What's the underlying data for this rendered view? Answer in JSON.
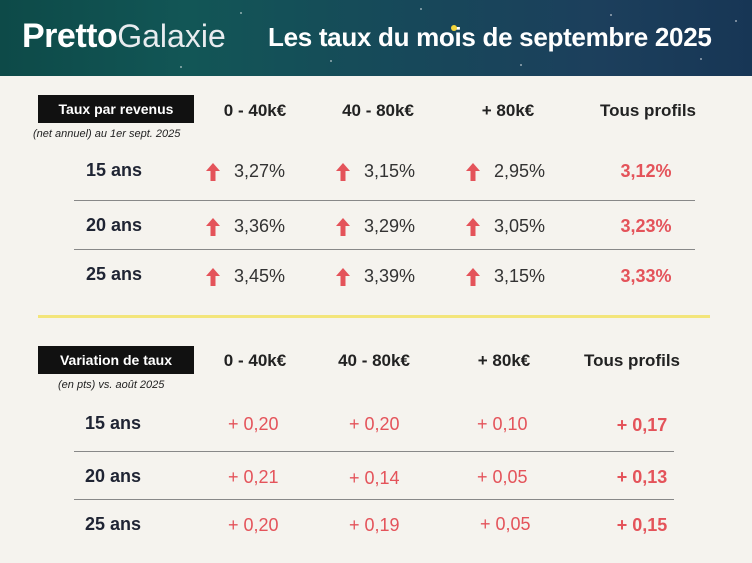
{
  "header": {
    "logo_bold": "Pretto",
    "logo_light": "Galaxie",
    "title": "Les taux du mois de septembre 2025"
  },
  "colors": {
    "accent_red": "#e4535a",
    "banner_teal": "#0d4a48",
    "banner_blue": "#173655",
    "highlight_yellow": "#f3e57a"
  },
  "rates": {
    "label": "Taux par revenus",
    "note": "(net annuel) au 1er sept. 2025",
    "columns": [
      "0 - 40k€",
      "40 - 80k€",
      "+ 80k€",
      "Tous profils"
    ],
    "arrow_icon": "arrow-up-icon",
    "rows": [
      {
        "duration": "15 ans",
        "values": [
          "3,27%",
          "3,15%",
          "2,95%"
        ],
        "total": "3,12%"
      },
      {
        "duration": "20 ans",
        "values": [
          "3,36%",
          "3,29%",
          "3,05%"
        ],
        "total": "3,23%"
      },
      {
        "duration": "25 ans",
        "values": [
          "3,45%",
          "3,39%",
          "3,15%"
        ],
        "total": "3,33%"
      }
    ]
  },
  "variation": {
    "label": "Variation de taux",
    "note": "(en pts) vs. août 2025",
    "columns": [
      "0 - 40k€",
      "40 - 80k€",
      "+ 80k€",
      "Tous profils"
    ],
    "rows": [
      {
        "duration": "15 ans",
        "values": [
          "+ 0,20",
          "+ 0,20",
          "+ 0,10"
        ],
        "total": "+ 0,17"
      },
      {
        "duration": "20 ans",
        "values": [
          "+ 0,21",
          "+ 0,14",
          "+ 0,05"
        ],
        "total": "+ 0,13"
      },
      {
        "duration": "25 ans",
        "values": [
          "+ 0,20",
          "+ 0,19",
          "+ 0,05"
        ],
        "total": "+ 0,15"
      }
    ]
  }
}
